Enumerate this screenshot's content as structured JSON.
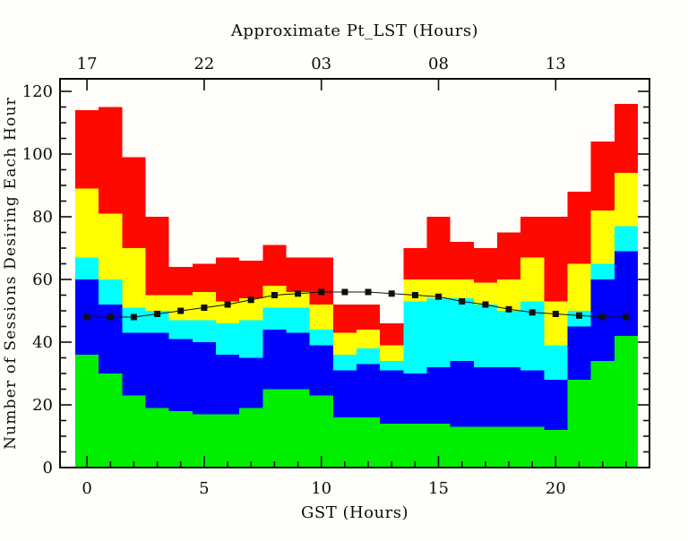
{
  "figure": {
    "background": "#fffefa",
    "frame_color": "#0c0c0c",
    "top_axis_title": "Approximate Pt_LST (Hours)",
    "xlabel": "GST (Hours)",
    "ylabel": "Number of Sessions Desiring Each Hour"
  },
  "chart_data": {
    "type": "bar",
    "subtype": "stacked-hourly-histogram-with-marker-line",
    "title": "Approximate Pt_LST (Hours)",
    "xlabel": "GST (Hours)",
    "ylabel": "Number of Sessions Desiring Each Hour",
    "grid": false,
    "legend": "none",
    "categories": [
      0,
      1,
      2,
      3,
      4,
      5,
      6,
      7,
      8,
      9,
      10,
      11,
      12,
      13,
      14,
      15,
      16,
      17,
      18,
      19,
      20,
      21,
      22,
      23
    ],
    "series": [
      {
        "name": "green-band",
        "color": "#00ef00",
        "values": [
          36,
          30,
          23,
          19,
          18,
          17,
          17,
          19,
          25,
          25,
          23,
          16,
          16,
          14,
          14,
          14,
          13,
          13,
          13,
          13,
          12,
          28,
          34,
          42
        ]
      },
      {
        "name": "blue-band",
        "color": "#0000ff",
        "values": [
          24,
          22,
          20,
          24,
          23,
          23,
          19,
          16,
          19,
          18,
          16,
          15,
          17,
          17,
          16,
          18,
          21,
          19,
          19,
          18,
          16,
          17,
          26,
          27
        ]
      },
      {
        "name": "cyan-band",
        "color": "#00ffff",
        "values": [
          7,
          8,
          8,
          7,
          6,
          7,
          10,
          12,
          7,
          8,
          5,
          5,
          5,
          3,
          23,
          22,
          20,
          20,
          18,
          22,
          11,
          5,
          5,
          8
        ]
      },
      {
        "name": "yellow-band",
        "color": "#ffff00",
        "values": [
          22,
          21,
          19,
          5,
          8,
          9,
          7,
          7,
          7,
          5,
          8,
          7,
          6,
          5,
          7,
          6,
          6,
          7,
          10,
          14,
          14,
          15,
          17,
          17
        ]
      },
      {
        "name": "red-band",
        "color": "#ff0800",
        "values": [
          25,
          34,
          29,
          25,
          9,
          9,
          14,
          12,
          13,
          11,
          15,
          9,
          8,
          7,
          10,
          20,
          12,
          11,
          15,
          13,
          27,
          23,
          22,
          22
        ]
      }
    ],
    "stacked_totals": [
      114,
      115,
      99,
      80,
      64,
      65,
      67,
      66,
      71,
      67,
      67,
      52,
      52,
      46,
      70,
      80,
      72,
      70,
      75,
      80,
      80,
      88,
      104,
      116
    ],
    "line": {
      "name": "hours-available-line",
      "color": "#101010",
      "marker": "filled-square",
      "values": [
        48,
        48,
        48,
        49,
        50,
        51,
        52,
        53.5,
        55,
        55.5,
        56,
        56,
        56,
        55.5,
        55,
        54.5,
        53,
        52,
        50.5,
        49.5,
        49,
        48.5,
        48,
        48
      ]
    },
    "x_axis": {
      "label": "GST (Hours)",
      "range": [
        -1.15,
        24.0
      ],
      "major_ticks": [
        0,
        5,
        10,
        15,
        20
      ],
      "major_tick_labels": [
        "0",
        "5",
        "10",
        "15",
        "20"
      ],
      "minor_tick_every": 1,
      "minor_tick_span": [
        0,
        23
      ]
    },
    "y_axis": {
      "label": "Number of Sessions Desiring Each Hour",
      "range": [
        0,
        124
      ],
      "major_ticks": [
        0,
        20,
        40,
        60,
        80,
        100,
        120
      ],
      "major_tick_labels": [
        "0",
        "20",
        "40",
        "60",
        "80",
        "100",
        "120"
      ],
      "minor_tick_every": 5
    },
    "top_axis": {
      "label": "Approximate Pt_LST (Hours)",
      "tick_positions_gst": [
        0,
        5,
        10,
        15,
        20
      ],
      "tick_labels": [
        "17",
        "22",
        "03",
        "08",
        "13"
      ]
    }
  }
}
